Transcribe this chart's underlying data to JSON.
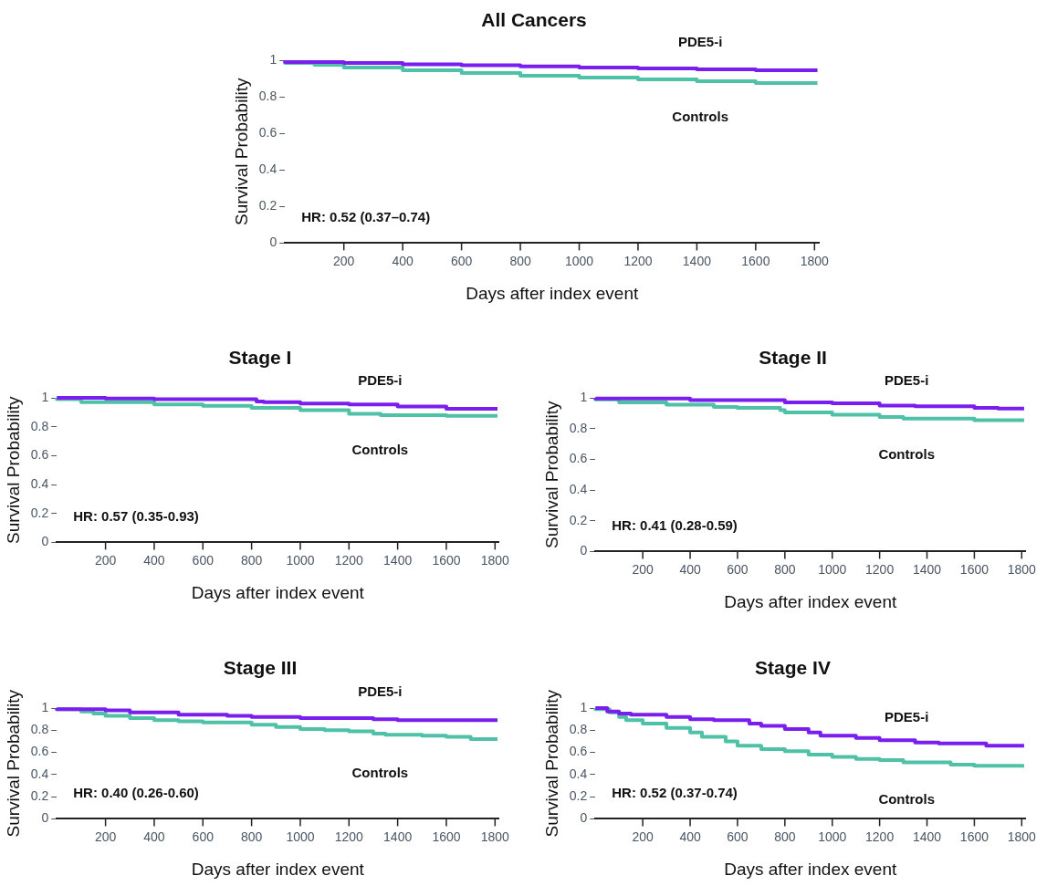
{
  "chart_data": [
    {
      "type": "step",
      "title": "All Cancers",
      "xlabel": "Days after index event",
      "ylabel": "Survival Probability",
      "xlim": [
        0,
        1815
      ],
      "xticks": [
        200,
        400,
        600,
        800,
        1000,
        1200,
        1400,
        1600,
        1800
      ],
      "ylim": [
        0,
        1
      ],
      "yticks": [
        0,
        0.2,
        0.4,
        0.6,
        0.8,
        1
      ],
      "grid": false,
      "legend": false,
      "annotations": [
        "HR: 0.52 (0.37–0.74)"
      ],
      "series": [
        {
          "name": "PDE5-i",
          "color": "#7a1ef0",
          "x": [
            0,
            200,
            400,
            600,
            800,
            1000,
            1200,
            1400,
            1600,
            1810
          ],
          "values": [
            1,
            0.99,
            0.985,
            0.978,
            0.972,
            0.966,
            0.96,
            0.955,
            0.95,
            0.945
          ]
        },
        {
          "name": "Controls",
          "color": "#4fc1a6",
          "x": [
            0,
            100,
            200,
            400,
            600,
            800,
            1000,
            1200,
            1400,
            1600,
            1810
          ],
          "values": [
            1,
            0.985,
            0.975,
            0.96,
            0.945,
            0.93,
            0.915,
            0.905,
            0.895,
            0.885,
            0.875
          ]
        }
      ]
    },
    {
      "type": "step",
      "title": "Stage I",
      "xlabel": "Days after index event",
      "ylabel": "Survival Probability",
      "xlim": [
        0,
        1815
      ],
      "xticks": [
        200,
        400,
        600,
        800,
        1000,
        1200,
        1400,
        1600,
        1800
      ],
      "ylim": [
        0,
        1
      ],
      "yticks": [
        0,
        0.2,
        0.4,
        0.6,
        0.8,
        1
      ],
      "grid": false,
      "legend": false,
      "annotations": [
        "HR: 0.57 (0.35-0.93)"
      ],
      "series": [
        {
          "name": "PDE5-i",
          "color": "#7a1ef0",
          "x": [
            0,
            200,
            400,
            820,
            850,
            1000,
            1200,
            1400,
            1600,
            1810
          ],
          "values": [
            1,
            1,
            0.995,
            0.99,
            0.975,
            0.97,
            0.96,
            0.955,
            0.94,
            0.925
          ]
        },
        {
          "name": "Controls",
          "color": "#4fc1a6",
          "x": [
            0,
            100,
            400,
            600,
            800,
            1000,
            1200,
            1330,
            1600,
            1810
          ],
          "values": [
            1,
            0.99,
            0.97,
            0.955,
            0.945,
            0.93,
            0.915,
            0.89,
            0.88,
            0.875
          ]
        }
      ]
    },
    {
      "type": "step",
      "title": "Stage II",
      "xlabel": "Days after index event",
      "ylabel": "Survival Probability",
      "xlim": [
        0,
        1815
      ],
      "xticks": [
        200,
        400,
        600,
        800,
        1000,
        1200,
        1400,
        1600,
        1800
      ],
      "ylim": [
        0,
        1
      ],
      "yticks": [
        0,
        0.2,
        0.4,
        0.6,
        0.8,
        1
      ],
      "grid": false,
      "legend": false,
      "annotations": [
        "HR: 0.41 (0.28-0.59)"
      ],
      "series": [
        {
          "name": "PDE5-i",
          "color": "#7a1ef0",
          "x": [
            0,
            400,
            800,
            1000,
            1200,
            1350,
            1600,
            1700,
            1810
          ],
          "values": [
            1,
            0.995,
            0.985,
            0.97,
            0.965,
            0.95,
            0.945,
            0.935,
            0.93
          ]
        },
        {
          "name": "Controls",
          "color": "#4fc1a6",
          "x": [
            0,
            100,
            300,
            500,
            600,
            780,
            800,
            1000,
            1200,
            1300,
            1600,
            1810
          ],
          "values": [
            1,
            0.99,
            0.97,
            0.955,
            0.94,
            0.935,
            0.92,
            0.905,
            0.89,
            0.875,
            0.865,
            0.855
          ]
        }
      ]
    },
    {
      "type": "step",
      "title": "Stage III",
      "xlabel": "Days after index event",
      "ylabel": "Survival Probability",
      "xlim": [
        0,
        1815
      ],
      "xticks": [
        200,
        400,
        600,
        800,
        1000,
        1200,
        1400,
        1600,
        1800
      ],
      "ylim": [
        0,
        1
      ],
      "yticks": [
        0,
        0.2,
        0.4,
        0.6,
        0.8,
        1
      ],
      "grid": false,
      "legend": false,
      "annotations": [
        "HR: 0.40 (0.26-0.60)"
      ],
      "series": [
        {
          "name": "PDE5-i",
          "color": "#7a1ef0",
          "x": [
            0,
            200,
            300,
            500,
            700,
            800,
            1000,
            1300,
            1400,
            1600,
            1810
          ],
          "values": [
            1,
            0.99,
            0.98,
            0.96,
            0.94,
            0.93,
            0.92,
            0.91,
            0.9,
            0.89,
            0.89
          ]
        },
        {
          "name": "Controls",
          "color": "#4fc1a6",
          "x": [
            0,
            100,
            150,
            200,
            300,
            400,
            500,
            600,
            800,
            900,
            1000,
            1100,
            1200,
            1300,
            1350,
            1500,
            1600,
            1700,
            1810
          ],
          "values": [
            1,
            0.99,
            0.97,
            0.95,
            0.93,
            0.91,
            0.89,
            0.88,
            0.87,
            0.85,
            0.83,
            0.81,
            0.8,
            0.79,
            0.77,
            0.76,
            0.75,
            0.74,
            0.72
          ]
        }
      ]
    },
    {
      "type": "step",
      "title": "Stage IV",
      "xlabel": "Days after index event",
      "ylabel": "Survival Probability",
      "xlim": [
        0,
        1815
      ],
      "xticks": [
        200,
        400,
        600,
        800,
        1000,
        1200,
        1400,
        1600,
        1800
      ],
      "ylim": [
        0,
        1
      ],
      "yticks": [
        0,
        0.2,
        0.4,
        0.6,
        0.8,
        1
      ],
      "grid": false,
      "legend": false,
      "annotations": [
        "HR: 0.52 (0.37-0.74)"
      ],
      "series": [
        {
          "name": "PDE5-i",
          "color": "#7a1ef0",
          "x": [
            0,
            50,
            100,
            150,
            300,
            400,
            500,
            650,
            700,
            800,
            900,
            950,
            1100,
            1200,
            1350,
            1450,
            1650,
            1700,
            1810
          ],
          "values": [
            1,
            1,
            0.97,
            0.95,
            0.94,
            0.92,
            0.9,
            0.89,
            0.86,
            0.84,
            0.81,
            0.78,
            0.75,
            0.73,
            0.71,
            0.69,
            0.68,
            0.66,
            0.66
          ]
        },
        {
          "name": "Controls",
          "color": "#4fc1a6",
          "x": [
            0,
            60,
            100,
            130,
            200,
            300,
            400,
            450,
            550,
            600,
            700,
            800,
            900,
            1000,
            1100,
            1200,
            1300,
            1500,
            1600,
            1810
          ],
          "values": [
            1,
            0.99,
            0.96,
            0.92,
            0.89,
            0.86,
            0.82,
            0.78,
            0.74,
            0.7,
            0.66,
            0.63,
            0.61,
            0.58,
            0.56,
            0.54,
            0.53,
            0.51,
            0.49,
            0.48
          ]
        }
      ]
    }
  ]
}
